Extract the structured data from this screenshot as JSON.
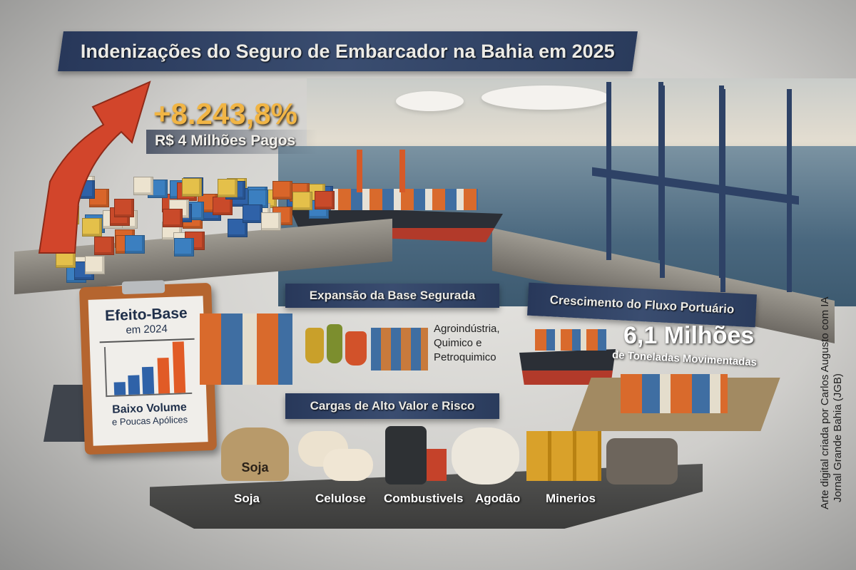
{
  "title": "Indenizações do Seguro de Embarcador na Bahia em 2025",
  "headline": {
    "growth": "+8.243,8%",
    "paid": "R$ 4 Milhões Pagos"
  },
  "base_effect": {
    "title": "Efeito-Base",
    "year": "em 2024",
    "line1": "Baixo Volume",
    "line2": "e Poucas Apólices"
  },
  "insured_base": {
    "title": "Expansão da Base Segurada",
    "sectors": [
      "Agroindústria,",
      "Quimico e",
      "Petroquimico"
    ]
  },
  "port_flow": {
    "title": "Crescimento do Fluxo Portuário",
    "value": "6,1 Milhões",
    "unit": "de Toneladas Movimentadas"
  },
  "cargo": {
    "title": "Cargas de Alto Valor e Risco",
    "sack_label": "Soja",
    "items": [
      "Soja",
      "Celulose",
      "Combustivels",
      "Agodão",
      "Minerios"
    ]
  },
  "credit": {
    "line1": "Arte digital criada por Carlos Augusto com IA",
    "line2": "Jornal Grande Bahia (JGB)"
  },
  "colors": {
    "banner": "#2f4264",
    "highlight": "#f1b545",
    "arrow": "#d2452b",
    "clipboard": "#b5652f"
  }
}
